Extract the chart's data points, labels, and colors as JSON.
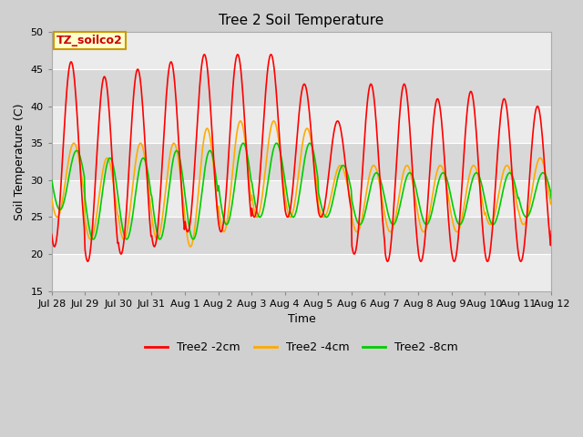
{
  "title": "Tree 2 Soil Temperature",
  "xlabel": "Time",
  "ylabel": "Soil Temperature (C)",
  "ylim": [
    15,
    50
  ],
  "yticks": [
    15,
    20,
    25,
    30,
    35,
    40,
    45,
    50
  ],
  "legend_label": "TZ_soilco2",
  "legend_label_color": "#cc0000",
  "legend_label_bg": "#ffffcc",
  "legend_label_border": "#cc9900",
  "series_colors": {
    "2cm": "#ff0000",
    "4cm": "#ffaa00",
    "8cm": "#00cc00"
  },
  "series_labels": [
    "Tree2 -2cm",
    "Tree2 -4cm",
    "Tree2 -8cm"
  ],
  "xtick_labels": [
    "Jul 28",
    "Jul 29",
    "Jul 30",
    "Jul 31",
    "Aug 1",
    "Aug 2",
    "Aug 3",
    "Aug 4",
    "Aug 5",
    "Aug 6",
    "Aug 7",
    "Aug 8",
    "Aug 9",
    "Aug 10",
    "Aug 11",
    "Aug 12"
  ],
  "band_colors_even": "#ebebeb",
  "band_colors_odd": "#d8d8d8",
  "grid_color": "#ffffff",
  "line_width": 1.2,
  "peaks_2cm": [
    46,
    44,
    45,
    46,
    47,
    47,
    47,
    43,
    38,
    43,
    43,
    41,
    42,
    41,
    40,
    39
  ],
  "troughs_2cm": [
    21,
    19,
    20,
    21,
    23,
    23,
    25,
    25,
    25,
    20,
    19,
    19,
    19,
    19,
    19,
    22
  ],
  "peaks_4cm": [
    35,
    33,
    35,
    35,
    37,
    38,
    38,
    37,
    32,
    32,
    32,
    32,
    32,
    32,
    33,
    32
  ],
  "troughs_4cm": [
    25,
    22,
    22,
    22,
    21,
    23,
    25,
    25,
    25,
    23,
    23,
    23,
    23,
    24,
    24,
    25
  ],
  "peaks_8cm": [
    34,
    33,
    33,
    34,
    34,
    35,
    35,
    35,
    32,
    31,
    31,
    31,
    31,
    31,
    31,
    30
  ],
  "troughs_8cm": [
    26,
    22,
    22,
    22,
    22,
    24,
    25,
    25,
    25,
    24,
    24,
    24,
    24,
    24,
    25,
    25
  ]
}
